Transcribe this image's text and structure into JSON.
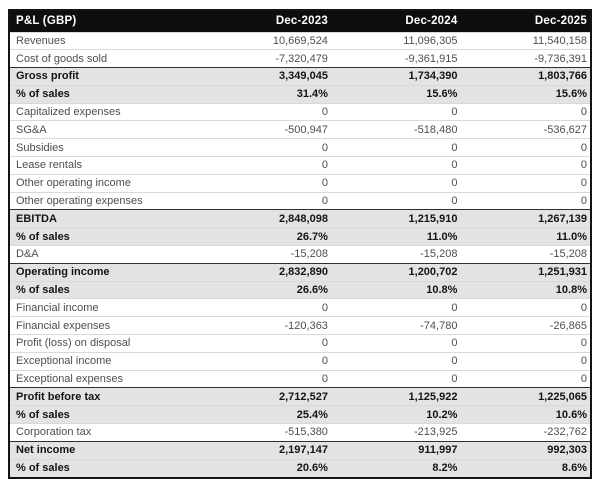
{
  "colors": {
    "page_bg": "#ffffff",
    "header_bg": "#0e0e0e",
    "header_text": "#ffffff",
    "line_text": "#4e4e4e",
    "emphasis_text": "#141414",
    "emphasis_bg": "#e3e3e3",
    "grid_line": "#d9d9d9",
    "section_line": "#2f2f2f",
    "table_border": "#141414"
  },
  "table": {
    "header": {
      "labels": [
        "P&L (GBP)",
        "Dec-2023",
        "Dec-2024",
        "Dec-2025"
      ]
    },
    "rows": [
      {
        "label": "Revenues",
        "kind": "line",
        "values": [
          "10,669,524",
          "11,096,305",
          "11,540,158"
        ]
      },
      {
        "label": "Cost of goods sold",
        "kind": "line",
        "values": [
          "-7,320,479",
          "-9,361,915",
          "-9,736,391"
        ]
      },
      {
        "label": "Gross profit",
        "kind": "total",
        "values": [
          "3,349,045",
          "1,734,390",
          "1,803,766"
        ]
      },
      {
        "label": "% of sales",
        "kind": "ratio",
        "values": [
          "31.4%",
          "15.6%",
          "15.6%"
        ]
      },
      {
        "label": "Capitalized expenses",
        "kind": "line",
        "values": [
          "0",
          "0",
          "0"
        ]
      },
      {
        "label": "SG&A",
        "kind": "line",
        "values": [
          "-500,947",
          "-518,480",
          "-536,627"
        ]
      },
      {
        "label": "Subsidies",
        "kind": "line",
        "values": [
          "0",
          "0",
          "0"
        ]
      },
      {
        "label": "Lease rentals",
        "kind": "line",
        "values": [
          "0",
          "0",
          "0"
        ]
      },
      {
        "label": "Other operating income",
        "kind": "line",
        "values": [
          "0",
          "0",
          "0"
        ]
      },
      {
        "label": "Other operating expenses",
        "kind": "line",
        "values": [
          "0",
          "0",
          "0"
        ]
      },
      {
        "label": "EBITDA",
        "kind": "total",
        "values": [
          "2,848,098",
          "1,215,910",
          "1,267,139"
        ]
      },
      {
        "label": "% of sales",
        "kind": "ratio",
        "values": [
          "26.7%",
          "11.0%",
          "11.0%"
        ]
      },
      {
        "label": "D&A",
        "kind": "line",
        "values": [
          "-15,208",
          "-15,208",
          "-15,208"
        ]
      },
      {
        "label": "Operating income",
        "kind": "total",
        "values": [
          "2,832,890",
          "1,200,702",
          "1,251,931"
        ]
      },
      {
        "label": "% of sales",
        "kind": "ratio",
        "values": [
          "26.6%",
          "10.8%",
          "10.8%"
        ]
      },
      {
        "label": "Financial income",
        "kind": "line",
        "values": [
          "0",
          "0",
          "0"
        ]
      },
      {
        "label": "Financial expenses",
        "kind": "line",
        "values": [
          "-120,363",
          "-74,780",
          "-26,865"
        ]
      },
      {
        "label": "Profit (loss) on disposal",
        "kind": "line",
        "values": [
          "0",
          "0",
          "0"
        ]
      },
      {
        "label": "Exceptional income",
        "kind": "line",
        "values": [
          "0",
          "0",
          "0"
        ]
      },
      {
        "label": "Exceptional expenses",
        "kind": "line",
        "values": [
          "0",
          "0",
          "0"
        ]
      },
      {
        "label": "Profit before tax",
        "kind": "total",
        "values": [
          "2,712,527",
          "1,125,922",
          "1,225,065"
        ]
      },
      {
        "label": "% of sales",
        "kind": "ratio",
        "values": [
          "25.4%",
          "10.2%",
          "10.6%"
        ]
      },
      {
        "label": "Corporation tax",
        "kind": "line",
        "values": [
          "-515,380",
          "-213,925",
          "-232,762"
        ]
      },
      {
        "label": "Net income",
        "kind": "total",
        "values": [
          "2,197,147",
          "911,997",
          "992,303"
        ]
      },
      {
        "label": "% of sales",
        "kind": "ratio",
        "values": [
          "20.6%",
          "8.2%",
          "8.6%"
        ]
      }
    ]
  }
}
